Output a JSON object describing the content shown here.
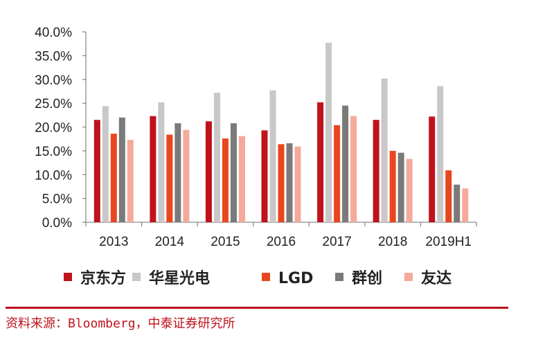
{
  "chart_data": {
    "type": "bar",
    "categories": [
      "2013",
      "2014",
      "2015",
      "2016",
      "2017",
      "2018",
      "2019H1"
    ],
    "series": [
      {
        "name": "京东方",
        "color": "#c0121c",
        "values": [
          21.5,
          22.3,
          21.2,
          19.3,
          25.2,
          21.5,
          22.2
        ]
      },
      {
        "name": "华星光电",
        "color": "#c8c8c8",
        "values": [
          24.4,
          25.2,
          27.2,
          27.7,
          37.7,
          30.2,
          28.6
        ]
      },
      {
        "name": "LGD",
        "color": "#e8461e",
        "values": [
          18.6,
          18.4,
          17.6,
          16.4,
          20.4,
          15.0,
          10.9
        ]
      },
      {
        "name": "群创",
        "color": "#7a7a7a",
        "values": [
          22.0,
          20.8,
          20.8,
          16.6,
          24.5,
          14.6,
          7.9
        ]
      },
      {
        "name": "友达",
        "color": "#f5a99a",
        "values": [
          17.3,
          19.4,
          18.1,
          15.9,
          22.3,
          13.3,
          7.1
        ]
      }
    ],
    "yticks": [
      "0.0%",
      "5.0%",
      "10.0%",
      "15.0%",
      "20.0%",
      "25.0%",
      "30.0%",
      "35.0%",
      "40.0%"
    ],
    "ylim": [
      0,
      40
    ],
    "title": "",
    "xlabel": "",
    "ylabel": "",
    "legend": "bottom"
  },
  "source": "资料来源：Bloomberg，中泰证券研究所"
}
